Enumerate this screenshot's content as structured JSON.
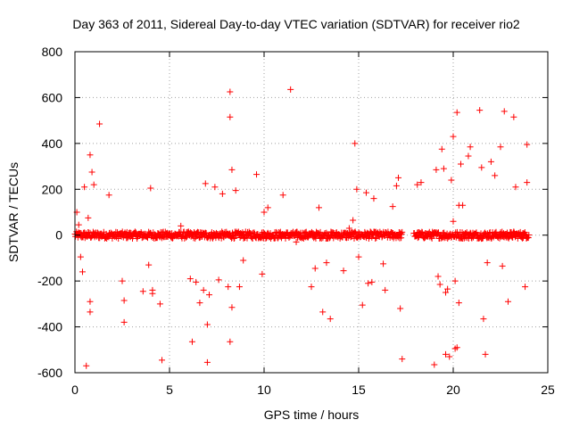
{
  "chart_data": {
    "type": "scatter",
    "title": "Day 363 of 2011, Sidereal Day-to-day VTEC variation (SDTVAR) for receiver rio2",
    "xlabel": "GPS time / hours",
    "ylabel": "SDTVAR / TECUs",
    "xlim": [
      0,
      25
    ],
    "ylim": [
      -600,
      800
    ],
    "xticks": [
      "0",
      "5",
      "10",
      "15",
      "20",
      "25"
    ],
    "yticks": [
      "-600",
      "-400",
      "-200",
      "0",
      "200",
      "400",
      "600",
      "800"
    ],
    "grid": true,
    "marker": "+",
    "color": "#ff0000",
    "band": {
      "x_start": 0,
      "x_end": 24,
      "gap": [
        17.3,
        17.9
      ],
      "center": 0,
      "half_width": 15,
      "count": 900
    },
    "series": [
      {
        "name": "SDTVAR",
        "x": [
          0.1,
          0.2,
          0.3,
          0.4,
          0.5,
          0.6,
          0.7,
          0.8,
          0.8,
          0.8,
          0.9,
          1.0,
          1.3,
          1.8,
          2.5,
          2.6,
          2.6,
          3.6,
          3.9,
          4.0,
          4.1,
          4.1,
          4.5,
          4.6,
          6.1,
          6.2,
          6.4,
          6.6,
          6.8,
          6.9,
          7.0,
          7.0,
          7.1,
          7.4,
          7.6,
          7.8,
          8.1,
          8.2,
          8.2,
          8.2,
          8.3,
          8.3,
          8.5,
          8.7,
          8.9,
          9.6,
          9.9,
          10.0,
          10.2,
          11.0,
          11.4,
          12.5,
          12.7,
          12.9,
          13.1,
          13.3,
          13.5,
          14.2,
          14.7,
          14.8,
          14.9,
          15.0,
          15.2,
          15.4,
          15.5,
          15.7,
          15.8,
          16.3,
          16.4,
          16.8,
          17.0,
          17.1,
          17.2,
          17.3,
          18.1,
          18.3,
          19.0,
          19.1,
          19.2,
          19.4,
          19.5,
          19.6,
          19.7,
          19.8,
          19.9,
          20.0,
          20.1,
          20.1,
          20.2,
          20.2,
          20.3,
          20.4,
          20.5,
          20.8,
          20.9,
          21.4,
          21.5,
          21.6,
          21.7,
          22.0,
          22.2,
          22.5,
          22.7,
          22.9,
          23.2,
          23.3,
          23.8,
          23.9,
          23.9,
          23.2,
          22.6,
          21.8,
          19.3,
          19.6,
          20.0,
          20.3,
          5.6,
          11.7,
          14.5
        ],
        "y": [
          100,
          45,
          -95,
          -160,
          210,
          -570,
          75,
          350,
          -290,
          -335,
          275,
          220,
          485,
          175,
          -200,
          -380,
          -285,
          -245,
          -130,
          205,
          -240,
          -255,
          -300,
          -545,
          -190,
          -465,
          -205,
          -295,
          -240,
          225,
          -390,
          -555,
          -260,
          210,
          -195,
          180,
          -225,
          625,
          515,
          -465,
          285,
          -315,
          195,
          -225,
          -110,
          265,
          -170,
          100,
          120,
          175,
          635,
          -225,
          -145,
          120,
          -335,
          -120,
          -365,
          -155,
          65,
          400,
          200,
          -95,
          -305,
          185,
          -210,
          -205,
          160,
          -125,
          -240,
          125,
          215,
          250,
          -320,
          -540,
          220,
          230,
          -565,
          285,
          -180,
          375,
          290,
          -520,
          -235,
          -530,
          240,
          430,
          -495,
          -200,
          535,
          -490,
          -295,
          310,
          130,
          345,
          385,
          545,
          295,
          -365,
          -520,
          320,
          260,
          385,
          540,
          -290,
          515,
          210,
          -225,
          395,
          230,
          15,
          -135,
          -120,
          -215,
          -250,
          60,
          130,
          40,
          -30,
          30
        ]
      }
    ]
  }
}
